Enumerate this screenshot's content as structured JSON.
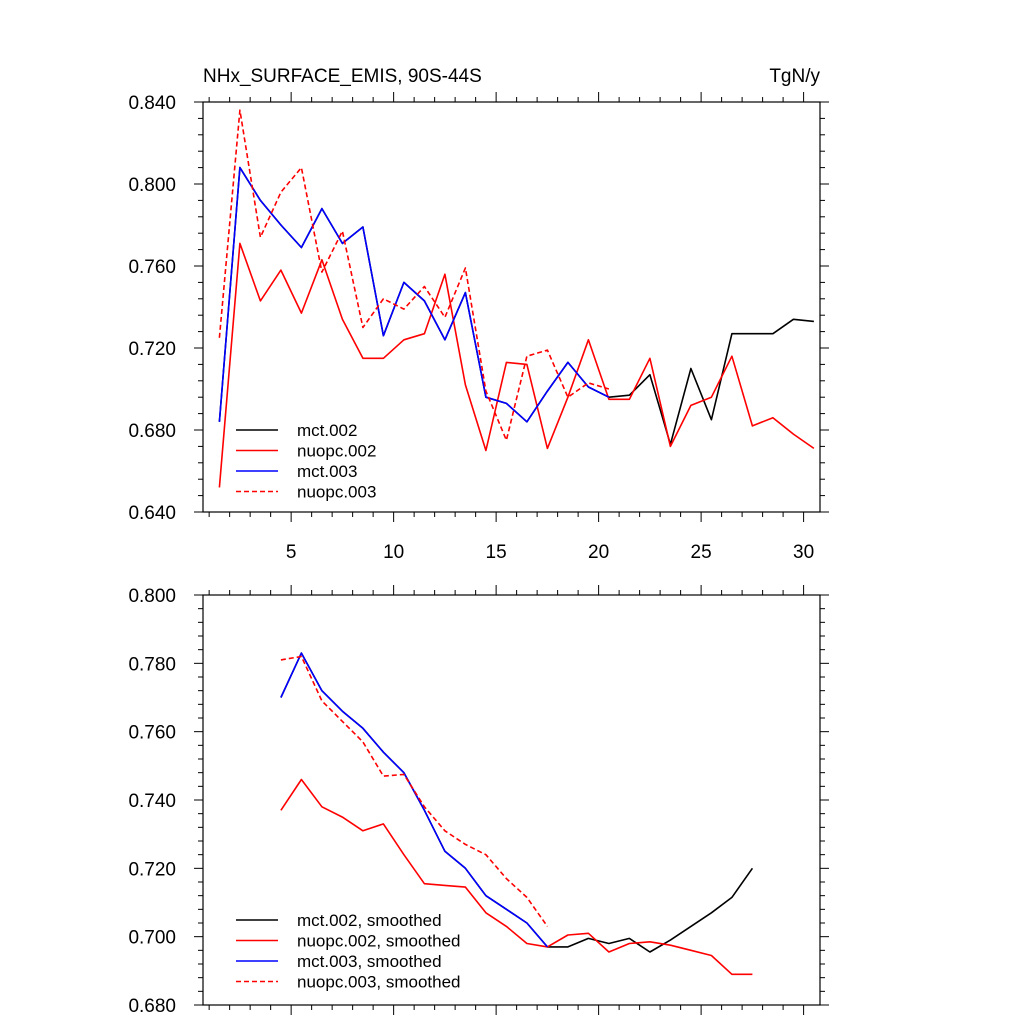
{
  "chart_data": [
    {
      "type": "line",
      "title": "NHx_SURFACE_EMIS, 90S-44S",
      "units": "TgN/y",
      "xlabel": "",
      "ylabel": "",
      "xlim": [
        0.7,
        30.8
      ],
      "ylim": [
        0.64,
        0.84
      ],
      "xticks": [
        5,
        10,
        15,
        20,
        25,
        30
      ],
      "xtick_labels": [
        "5",
        "10",
        "15",
        "20",
        "25",
        "30"
      ],
      "yticks": [
        0.64,
        0.68,
        0.72,
        0.76,
        0.8,
        0.84
      ],
      "ytick_labels": [
        "0.640",
        "0.680",
        "0.720",
        "0.760",
        "0.800",
        "0.840"
      ],
      "legend_position": "bottom-left",
      "series": [
        {
          "name": "mct.002",
          "color": "#000000",
          "dash": "solid",
          "x": [
            1.5,
            2.5,
            3.5,
            4.5,
            5.5,
            6.5,
            7.5,
            8.5,
            9.5,
            10.5,
            11.5,
            12.5,
            13.5,
            14.5,
            15.5,
            16.5,
            17.5,
            18.5,
            19.5,
            20.5,
            21.5,
            22.5,
            23.5,
            24.5,
            25.5,
            26.5,
            27.5,
            28.5,
            29.5,
            30.5
          ],
          "values": [
            0.684,
            0.808,
            0.792,
            0.78,
            0.769,
            0.788,
            0.771,
            0.779,
            0.726,
            0.752,
            0.743,
            0.724,
            0.747,
            0.696,
            0.693,
            0.684,
            0.699,
            0.713,
            0.701,
            0.696,
            0.697,
            0.707,
            0.673,
            0.71,
            0.685,
            0.727,
            0.727,
            0.727,
            0.734,
            0.733
          ]
        },
        {
          "name": "nuopc.002",
          "color": "#ff0000",
          "dash": "solid",
          "x": [
            1.5,
            2.5,
            3.5,
            4.5,
            5.5,
            6.5,
            7.5,
            8.5,
            9.5,
            10.5,
            11.5,
            12.5,
            13.5,
            14.5,
            15.5,
            16.5,
            17.5,
            18.5,
            19.5,
            20.5,
            21.5,
            22.5,
            23.5,
            24.5,
            25.5,
            26.5,
            27.5,
            28.5,
            29.5,
            30.5
          ],
          "values": [
            0.652,
            0.771,
            0.743,
            0.758,
            0.737,
            0.763,
            0.734,
            0.715,
            0.715,
            0.724,
            0.727,
            0.756,
            0.702,
            0.67,
            0.713,
            0.712,
            0.671,
            0.696,
            0.724,
            0.695,
            0.695,
            0.715,
            0.672,
            0.692,
            0.696,
            0.716,
            0.682,
            0.686,
            0.678,
            0.671
          ]
        },
        {
          "name": "mct.003",
          "color": "#0000ff",
          "dash": "solid",
          "x": [
            1.5,
            2.5,
            3.5,
            4.5,
            5.5,
            6.5,
            7.5,
            8.5,
            9.5,
            10.5,
            11.5,
            12.5,
            13.5,
            14.5,
            15.5,
            16.5,
            17.5,
            18.5,
            19.5,
            20.5
          ],
          "values": [
            0.684,
            0.808,
            0.792,
            0.78,
            0.769,
            0.788,
            0.771,
            0.779,
            0.726,
            0.752,
            0.743,
            0.724,
            0.747,
            0.696,
            0.693,
            0.684,
            0.699,
            0.713,
            0.701,
            0.696
          ]
        },
        {
          "name": "nuopc.003",
          "color": "#ff0000",
          "dash": "dashed",
          "x": [
            1.5,
            2.5,
            3.5,
            4.5,
            5.5,
            6.5,
            7.5,
            8.5,
            9.5,
            10.5,
            11.5,
            12.5,
            13.5,
            14.5,
            15.5,
            16.5,
            17.5,
            18.5,
            19.5,
            20.5
          ],
          "values": [
            0.725,
            0.836,
            0.774,
            0.796,
            0.808,
            0.757,
            0.777,
            0.73,
            0.744,
            0.739,
            0.75,
            0.735,
            0.759,
            0.699,
            0.675,
            0.716,
            0.719,
            0.696,
            0.703,
            0.7
          ]
        }
      ]
    },
    {
      "type": "line",
      "title": "",
      "xlabel": "",
      "ylabel": "",
      "xlim": [
        0.7,
        30.8
      ],
      "ylim": [
        0.68,
        0.8
      ],
      "xticks": [
        5,
        10,
        15,
        20,
        25,
        30
      ],
      "xtick_labels": [],
      "yticks": [
        0.68,
        0.7,
        0.72,
        0.74,
        0.76,
        0.78,
        0.8
      ],
      "ytick_labels": [
        "0.680",
        "0.700",
        "0.720",
        "0.740",
        "0.760",
        "0.780",
        "0.800"
      ],
      "legend_position": "bottom-left",
      "series": [
        {
          "name": "mct.002, smoothed",
          "color": "#000000",
          "dash": "solid",
          "x": [
            4.5,
            5.5,
            6.5,
            7.5,
            8.5,
            9.5,
            10.5,
            11.5,
            12.5,
            13.5,
            14.5,
            15.5,
            16.5,
            17.5,
            18.5,
            19.5,
            20.5,
            21.5,
            22.5,
            23.5,
            24.5,
            25.5,
            26.5,
            27.5
          ],
          "values": [
            0.77,
            0.783,
            0.772,
            0.766,
            0.761,
            0.754,
            0.748,
            0.737,
            0.725,
            0.72,
            0.712,
            0.708,
            0.704,
            0.697,
            0.697,
            0.6995,
            0.698,
            0.6995,
            0.6955,
            0.699,
            0.703,
            0.707,
            0.7115,
            0.72
          ]
        },
        {
          "name": "nuopc.002, smoothed",
          "color": "#ff0000",
          "dash": "solid",
          "x": [
            4.5,
            5.5,
            6.5,
            7.5,
            8.5,
            9.5,
            10.5,
            11.5,
            12.5,
            13.5,
            14.5,
            15.5,
            16.5,
            17.5,
            18.5,
            19.5,
            20.5,
            21.5,
            22.5,
            23.5,
            24.5,
            25.5,
            26.5,
            27.5
          ],
          "values": [
            0.737,
            0.746,
            0.738,
            0.735,
            0.731,
            0.733,
            0.724,
            0.7155,
            0.715,
            0.7145,
            0.707,
            0.703,
            0.698,
            0.697,
            0.7005,
            0.701,
            0.6955,
            0.698,
            0.6985,
            0.6975,
            0.696,
            0.6945,
            0.689,
            0.689
          ]
        },
        {
          "name": "mct.003, smoothed",
          "color": "#0000ff",
          "dash": "solid",
          "x": [
            4.5,
            5.5,
            6.5,
            7.5,
            8.5,
            9.5,
            10.5,
            11.5,
            12.5,
            13.5,
            14.5,
            15.5,
            16.5,
            17.5
          ],
          "values": [
            0.77,
            0.783,
            0.772,
            0.766,
            0.761,
            0.754,
            0.748,
            0.737,
            0.725,
            0.72,
            0.712,
            0.708,
            0.704,
            0.697
          ]
        },
        {
          "name": "nuopc.003, smoothed",
          "color": "#ff0000",
          "dash": "dashed",
          "x": [
            4.5,
            5.5,
            6.5,
            7.5,
            8.5,
            9.5,
            10.5,
            11.5,
            12.5,
            13.5,
            14.5,
            15.5,
            16.5,
            17.5
          ],
          "values": [
            0.781,
            0.782,
            0.769,
            0.763,
            0.757,
            0.747,
            0.7475,
            0.738,
            0.731,
            0.727,
            0.724,
            0.717,
            0.7115,
            0.703
          ]
        }
      ]
    }
  ]
}
